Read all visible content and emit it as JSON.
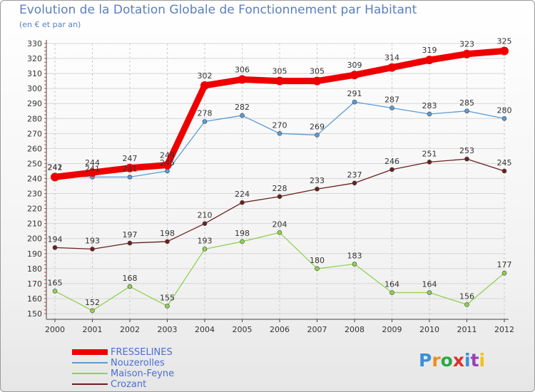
{
  "header": {
    "title": "Evolution de la Dotation Globale de Fonctionnement par Habitant",
    "subtitle": "(en € et par an)"
  },
  "logo": {
    "text": "Proxiti",
    "colors": [
      "#3a8fd8",
      "#f28c1e",
      "#2aa84a",
      "#e0302a",
      "#3a8fd8",
      "#9a40b8",
      "#f2c218"
    ]
  },
  "chart_data": {
    "type": "line",
    "title": "Evolution de la Dotation Globale de Fonctionnement par Habitant",
    "ylabel": "(en € et par an)",
    "xlabel": "",
    "ylim": [
      150,
      330
    ],
    "yticks": [
      150,
      160,
      170,
      180,
      190,
      200,
      210,
      220,
      230,
      240,
      250,
      260,
      270,
      280,
      290,
      300,
      310,
      320,
      330
    ],
    "categories": [
      "2000",
      "2001",
      "2002",
      "2003",
      "2004",
      "2005",
      "2006",
      "2007",
      "2008",
      "2009",
      "2010",
      "2011",
      "2012"
    ],
    "grid": true,
    "legend_position": "bottom-left",
    "series": [
      {
        "name": "FRESSELINES",
        "color": "#ee0000",
        "values": [
          241,
          244,
          247,
          249,
          302,
          306,
          305,
          305,
          309,
          314,
          319,
          323,
          325
        ]
      },
      {
        "name": "Nouzerolles",
        "color": "#5b9bd5",
        "values": [
          242,
          241,
          241,
          245,
          278,
          282,
          270,
          269,
          291,
          287,
          283,
          285,
          280
        ]
      },
      {
        "name": "Maison-Feyne",
        "color": "#92d050",
        "values": [
          165,
          152,
          168,
          155,
          193,
          198,
          204,
          180,
          183,
          164,
          164,
          156,
          177
        ]
      },
      {
        "name": "Crozant",
        "color": "#6b1f1f",
        "values": [
          194,
          193,
          197,
          198,
          210,
          224,
          228,
          233,
          237,
          246,
          251,
          253,
          245
        ]
      }
    ]
  }
}
